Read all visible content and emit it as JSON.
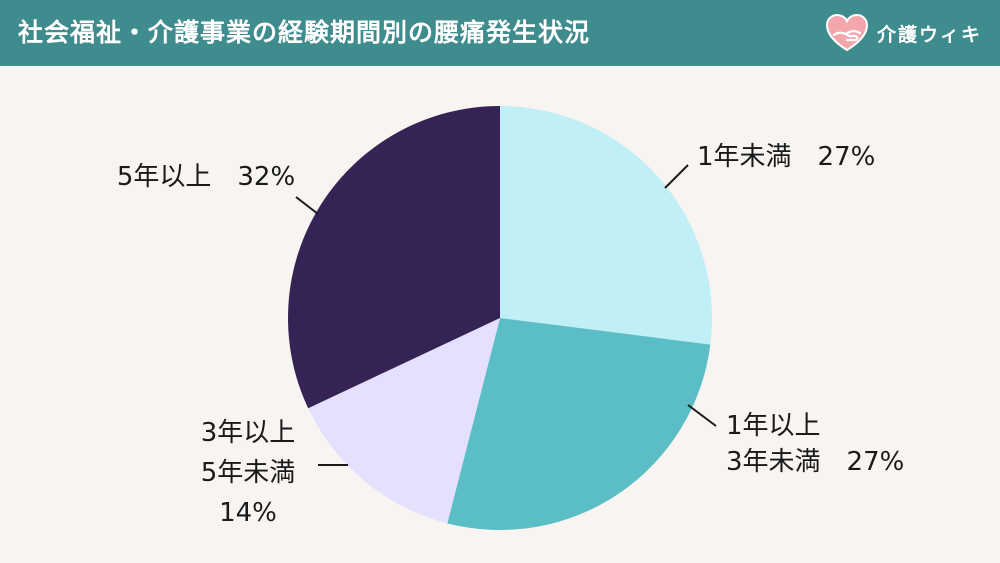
{
  "header": {
    "title": "社会福祉・介護事業の経験期間別の腰痛発生状況",
    "logo_text": "介護ウィキ",
    "logo_icon": "heart-hands-icon",
    "background_color": "#3f8c8f"
  },
  "chart_data": {
    "type": "pie",
    "start": "12 o'clock, clockwise",
    "slices": [
      {
        "label_lines": [
          "1年未満　27%"
        ],
        "value": 27,
        "color": "#c0eff6"
      },
      {
        "label_lines": [
          "1年以上",
          "3年未満　27%"
        ],
        "value": 27,
        "color": "#5bbec6"
      },
      {
        "label_lines": [
          "3年以上",
          "5年未満",
          "14%"
        ],
        "value": 14,
        "color": "#e6e0ff"
      },
      {
        "label_lines": [
          "5年以上　32%"
        ],
        "value": 32,
        "color": "#352355"
      }
    ]
  }
}
